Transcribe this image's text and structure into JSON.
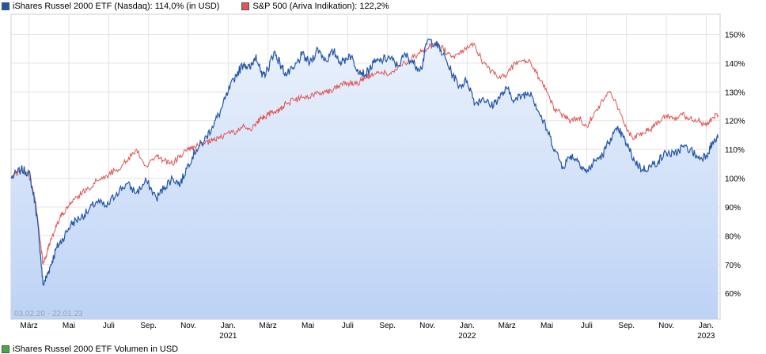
{
  "legend": {
    "series1_label": "iShares Russel 2000 ETF (Nasdaq): 114,0% (in USD)",
    "series2_label": "S&P 500 (Ariva Indikation): 122,2%",
    "volume_label": "iShares Russel 2000 ETF Volumen in USD",
    "colors": {
      "series1": "#2255aa",
      "series2": "#e05555",
      "volume": "#44aa44"
    }
  },
  "date_range": "03.02.20 - 22.01.23",
  "chart_data": {
    "type": "line",
    "title": "",
    "xlabel": "",
    "ylabel": "",
    "ylim": [
      51,
      157
    ],
    "y_ticks": [
      60,
      70,
      80,
      90,
      100,
      110,
      120,
      130,
      140,
      150
    ],
    "y_tick_labels": [
      "60%",
      "70%",
      "80%",
      "90%",
      "100%",
      "110%",
      "120%",
      "130%",
      "140%",
      "150%"
    ],
    "x_ticks": [
      {
        "label": "März",
        "sub": "",
        "m": 0.9
      },
      {
        "label": "Mai",
        "sub": "",
        "m": 2.9
      },
      {
        "label": "Juli",
        "sub": "",
        "m": 4.9
      },
      {
        "label": "Sep.",
        "sub": "",
        "m": 6.9
      },
      {
        "label": "Nov.",
        "sub": "",
        "m": 8.9
      },
      {
        "label": "Jan.",
        "sub": "2021",
        "m": 10.9
      },
      {
        "label": "März",
        "sub": "",
        "m": 12.9
      },
      {
        "label": "Mai",
        "sub": "",
        "m": 14.9
      },
      {
        "label": "Juli",
        "sub": "",
        "m": 16.9
      },
      {
        "label": "Sep.",
        "sub": "",
        "m": 18.9
      },
      {
        "label": "Nov.",
        "sub": "",
        "m": 20.9
      },
      {
        "label": "Jan.",
        "sub": "2022",
        "m": 22.9
      },
      {
        "label": "März",
        "sub": "",
        "m": 24.9
      },
      {
        "label": "Mai",
        "sub": "",
        "m": 26.9
      },
      {
        "label": "Juli",
        "sub": "",
        "m": 28.9
      },
      {
        "label": "Sep.",
        "sub": "",
        "m": 30.9
      },
      {
        "label": "Nov.",
        "sub": "",
        "m": 32.9
      },
      {
        "label": "Jan.",
        "sub": "2023",
        "m": 34.9
      }
    ],
    "x_unit": "months since 2020-02-03",
    "x_max": 35.6,
    "series": [
      {
        "name": "iShares Russel 2000 ETF (Nasdaq)",
        "color": "#2255aa",
        "fill": true,
        "x": [
          0,
          0.5,
          0.9,
          1.2,
          1.4,
          1.6,
          1.8,
          2.0,
          2.3,
          2.6,
          3.0,
          3.4,
          3.8,
          4.3,
          4.8,
          5.3,
          5.8,
          6.3,
          6.8,
          7.3,
          7.7,
          8.1,
          8.5,
          8.9,
          9.3,
          9.7,
          10.1,
          10.5,
          10.9,
          11.3,
          11.7,
          12.0,
          12.3,
          12.6,
          12.9,
          13.2,
          13.5,
          13.8,
          14.2,
          14.6,
          15.0,
          15.4,
          15.8,
          16.2,
          16.6,
          17.0,
          17.4,
          17.8,
          18.2,
          18.6,
          19.0,
          19.4,
          19.8,
          20.2,
          20.6,
          20.9,
          21.3,
          21.7,
          22.1,
          22.5,
          22.9,
          23.3,
          23.7,
          24.1,
          24.5,
          24.9,
          25.3,
          25.7,
          26.1,
          26.5,
          26.9,
          27.3,
          27.7,
          28.1,
          28.5,
          28.9,
          29.3,
          29.7,
          30.1,
          30.5,
          30.9,
          31.3,
          31.7,
          32.1,
          32.5,
          32.9,
          33.3,
          33.7,
          34.1,
          34.5,
          34.9,
          35.2,
          35.5
        ],
        "values": [
          100,
          103,
          102,
          92,
          80,
          63,
          66,
          70,
          76,
          79,
          84,
          86,
          88,
          92,
          90,
          95,
          98,
          95,
          99,
          93,
          97,
          100,
          98,
          105,
          110,
          113,
          118,
          123,
          130,
          136,
          140,
          138,
          143,
          135,
          138,
          144,
          140,
          136,
          138,
          143,
          140,
          145,
          141,
          144,
          140,
          143,
          138,
          136,
          140,
          141,
          142,
          139,
          143,
          140,
          138,
          148,
          147,
          143,
          137,
          132,
          134,
          126,
          128,
          125,
          128,
          131,
          127,
          129,
          130,
          123,
          117,
          110,
          104,
          108,
          106,
          102,
          106,
          108,
          114,
          117,
          112,
          106,
          103,
          104,
          106,
          109,
          108,
          111,
          110,
          107,
          108,
          112,
          114
        ]
      },
      {
        "name": "S&P 500 (Ariva Indikation)",
        "color": "#e05555",
        "fill": false,
        "x": [
          0,
          0.5,
          0.9,
          1.2,
          1.4,
          1.6,
          1.8,
          2.0,
          2.3,
          2.6,
          3.0,
          3.4,
          3.8,
          4.3,
          4.8,
          5.3,
          5.8,
          6.3,
          6.8,
          7.3,
          7.7,
          8.1,
          8.5,
          8.9,
          9.3,
          9.7,
          10.1,
          10.5,
          10.9,
          11.3,
          11.7,
          12.0,
          12.3,
          12.6,
          12.9,
          13.2,
          13.5,
          13.8,
          14.2,
          14.6,
          15.0,
          15.4,
          15.8,
          16.2,
          16.6,
          17.0,
          17.4,
          17.8,
          18.2,
          18.6,
          19.0,
          19.4,
          19.8,
          20.2,
          20.6,
          20.9,
          21.3,
          21.7,
          22.1,
          22.5,
          22.9,
          23.3,
          23.7,
          24.1,
          24.5,
          24.9,
          25.3,
          25.7,
          26.1,
          26.5,
          26.9,
          27.3,
          27.7,
          28.1,
          28.5,
          28.9,
          29.3,
          29.7,
          30.1,
          30.5,
          30.9,
          31.3,
          31.7,
          32.1,
          32.5,
          32.9,
          33.3,
          33.7,
          34.1,
          34.5,
          34.9,
          35.2,
          35.5
        ],
        "values": [
          100,
          103,
          101,
          93,
          82,
          70,
          74,
          79,
          84,
          88,
          91,
          94,
          96,
          99,
          101,
          103,
          106,
          110,
          104,
          108,
          106,
          105,
          108,
          110,
          111,
          112,
          113,
          114,
          116,
          116,
          118,
          117,
          119,
          121,
          122,
          123,
          124,
          126,
          127,
          128,
          128,
          130,
          130,
          131,
          133,
          133,
          133,
          135,
          136,
          137,
          136,
          138,
          140,
          142,
          144,
          145,
          147,
          145,
          142,
          143,
          146,
          146,
          140,
          137,
          135,
          136,
          140,
          141,
          140,
          135,
          130,
          124,
          122,
          120,
          121,
          118,
          123,
          127,
          130,
          124,
          117,
          114,
          116,
          117,
          120,
          122,
          121,
          122,
          121,
          120,
          118,
          121,
          122
        ]
      }
    ]
  }
}
